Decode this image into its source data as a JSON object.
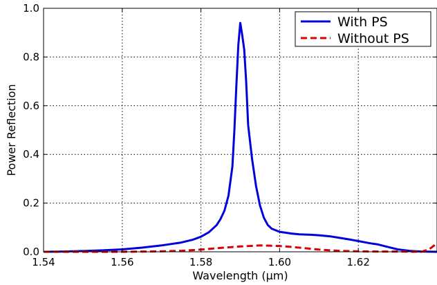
{
  "chart_data": {
    "type": "line",
    "xlabel": "Wavelength (μm)",
    "ylabel": "Power Reflection",
    "xlim": [
      1.54,
      1.64
    ],
    "ylim": [
      0.0,
      1.0
    ],
    "x_ticks": [
      "1.54",
      "1.56",
      "1.58",
      "1.60",
      "1.62"
    ],
    "y_ticks": [
      "0.0",
      "0.2",
      "0.4",
      "0.6",
      "0.8",
      "1.0"
    ],
    "grid": true,
    "grid_style": "dotted",
    "legend_position": "top-right",
    "series": [
      {
        "name": "With PS",
        "color": "#0000dd",
        "line_style": "solid",
        "points": [
          [
            1.54,
            0.0
          ],
          [
            1.545,
            0.001
          ],
          [
            1.55,
            0.003
          ],
          [
            1.555,
            0.006
          ],
          [
            1.56,
            0.01
          ],
          [
            1.565,
            0.017
          ],
          [
            1.57,
            0.026
          ],
          [
            1.575,
            0.038
          ],
          [
            1.578,
            0.05
          ],
          [
            1.58,
            0.062
          ],
          [
            1.582,
            0.08
          ],
          [
            1.584,
            0.11
          ],
          [
            1.585,
            0.135
          ],
          [
            1.586,
            0.17
          ],
          [
            1.587,
            0.23
          ],
          [
            1.588,
            0.35
          ],
          [
            1.5885,
            0.5
          ],
          [
            1.589,
            0.68
          ],
          [
            1.5895,
            0.85
          ],
          [
            1.59,
            0.94
          ],
          [
            1.5905,
            0.89
          ],
          [
            1.591,
            0.83
          ],
          [
            1.5915,
            0.7
          ],
          [
            1.592,
            0.52
          ],
          [
            1.593,
            0.38
          ],
          [
            1.594,
            0.27
          ],
          [
            1.595,
            0.19
          ],
          [
            1.596,
            0.14
          ],
          [
            1.597,
            0.11
          ],
          [
            1.598,
            0.095
          ],
          [
            1.6,
            0.082
          ],
          [
            1.603,
            0.075
          ],
          [
            1.605,
            0.072
          ],
          [
            1.608,
            0.07
          ],
          [
            1.61,
            0.068
          ],
          [
            1.613,
            0.063
          ],
          [
            1.615,
            0.058
          ],
          [
            1.618,
            0.05
          ],
          [
            1.62,
            0.044
          ],
          [
            1.623,
            0.035
          ],
          [
            1.625,
            0.03
          ],
          [
            1.628,
            0.018
          ],
          [
            1.63,
            0.01
          ],
          [
            1.633,
            0.004
          ],
          [
            1.636,
            0.001
          ],
          [
            1.64,
            0.0
          ]
        ]
      },
      {
        "name": "Without PS",
        "color": "#dd0000",
        "line_style": "dashed",
        "points": [
          [
            1.54,
            0.0
          ],
          [
            1.55,
            0.0
          ],
          [
            1.56,
            0.0
          ],
          [
            1.57,
            0.002
          ],
          [
            1.575,
            0.004
          ],
          [
            1.58,
            0.009
          ],
          [
            1.585,
            0.016
          ],
          [
            1.59,
            0.022
          ],
          [
            1.595,
            0.026
          ],
          [
            1.6,
            0.024
          ],
          [
            1.605,
            0.017
          ],
          [
            1.61,
            0.009
          ],
          [
            1.615,
            0.004
          ],
          [
            1.62,
            0.002
          ],
          [
            1.625,
            0.001
          ],
          [
            1.63,
            0.001
          ],
          [
            1.636,
            0.0
          ],
          [
            1.638,
            0.01
          ],
          [
            1.64,
            0.035
          ]
        ]
      }
    ]
  }
}
